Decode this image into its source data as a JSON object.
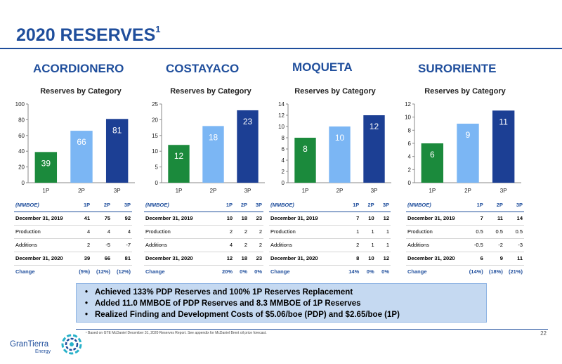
{
  "slide": {
    "title": "2020 RESERVES",
    "title_sup": "1",
    "chart_heading": "Reserves by Category",
    "callout_bullets": [
      "Achieved 133% PDP Reserves and 100% 1P Reserves Replacement",
      "Added 11.0 MMBOE of PDP Reserves and 8.3 MMBOE of 1P Reserves",
      "Realized Finding and Development Costs of $5.06/boe (PDP) and $2.65/boe (1P)"
    ],
    "footnote": "¹ Based on GTE McDaniel December 31, 2020 Reserves Report. See appendix for McDaniel Brent oil price forecast.",
    "page_number": "22",
    "logo": {
      "name": "GranTierra",
      "sub": "Energy"
    }
  },
  "colors": {
    "brand_blue": "#1f4e9c",
    "bar_1p": "#1b8a3c",
    "bar_2p": "#7bb6f4",
    "bar_3p": "#1c3f94"
  },
  "table_columns": [
    "(MMBOE)",
    "1P",
    "2P",
    "3P"
  ],
  "table_labels": [
    "December 31, 2019",
    "Production",
    "Additions",
    "December 31, 2020",
    "Change"
  ],
  "fields": [
    {
      "name": "ACORDIONERO",
      "table": [
        [
          "41",
          "75",
          "92"
        ],
        [
          "4",
          "4",
          "4"
        ],
        [
          "2",
          "-5",
          "-7"
        ],
        [
          "39",
          "66",
          "81"
        ],
        [
          "(5%)",
          "(12%)",
          "(12%)"
        ]
      ]
    },
    {
      "name": "COSTAYACO",
      "table": [
        [
          "10",
          "18",
          "23"
        ],
        [
          "2",
          "2",
          "2"
        ],
        [
          "4",
          "2",
          "2"
        ],
        [
          "12",
          "18",
          "23"
        ],
        [
          "20%",
          "0%",
          "0%"
        ]
      ]
    },
    {
      "name": "MOQUETA",
      "table": [
        [
          "7",
          "10",
          "12"
        ],
        [
          "1",
          "1",
          "1"
        ],
        [
          "2",
          "1",
          "1"
        ],
        [
          "8",
          "10",
          "12"
        ],
        [
          "14%",
          "0%",
          "0%"
        ]
      ]
    },
    {
      "name": "SURORIENTE",
      "table": [
        [
          "7",
          "11",
          "14"
        ],
        [
          "0.5",
          "0.5",
          "0.5"
        ],
        [
          "-0.5",
          "-2",
          "-3"
        ],
        [
          "6",
          "9",
          "11"
        ],
        [
          "(14%)",
          "(18%)",
          "(21%)"
        ]
      ]
    }
  ],
  "chart_data": [
    {
      "type": "bar",
      "title": "Reserves by Category",
      "categories": [
        "1P",
        "2P",
        "3P"
      ],
      "values": [
        39,
        66,
        81
      ],
      "ylim": [
        0,
        100
      ],
      "yticks": [
        0,
        20,
        40,
        60,
        80,
        100
      ],
      "grid": false
    },
    {
      "type": "bar",
      "title": "Reserves by Category",
      "categories": [
        "1P",
        "2P",
        "3P"
      ],
      "values": [
        12,
        18,
        23
      ],
      "ylim": [
        0,
        25
      ],
      "yticks": [
        0,
        5,
        10,
        15,
        20,
        25
      ],
      "grid": false
    },
    {
      "type": "bar",
      "title": "Reserves by Category",
      "categories": [
        "1P",
        "2P",
        "3P"
      ],
      "values": [
        8,
        10,
        12
      ],
      "ylim": [
        0,
        14
      ],
      "yticks": [
        0,
        2,
        4,
        6,
        8,
        10,
        12,
        14
      ],
      "grid": false
    },
    {
      "type": "bar",
      "title": "Reserves by Category",
      "categories": [
        "1P",
        "2P",
        "3P"
      ],
      "values": [
        6,
        9,
        11
      ],
      "ylim": [
        0,
        12
      ],
      "yticks": [
        0,
        2,
        4,
        6,
        8,
        10,
        12
      ],
      "grid": false
    }
  ]
}
